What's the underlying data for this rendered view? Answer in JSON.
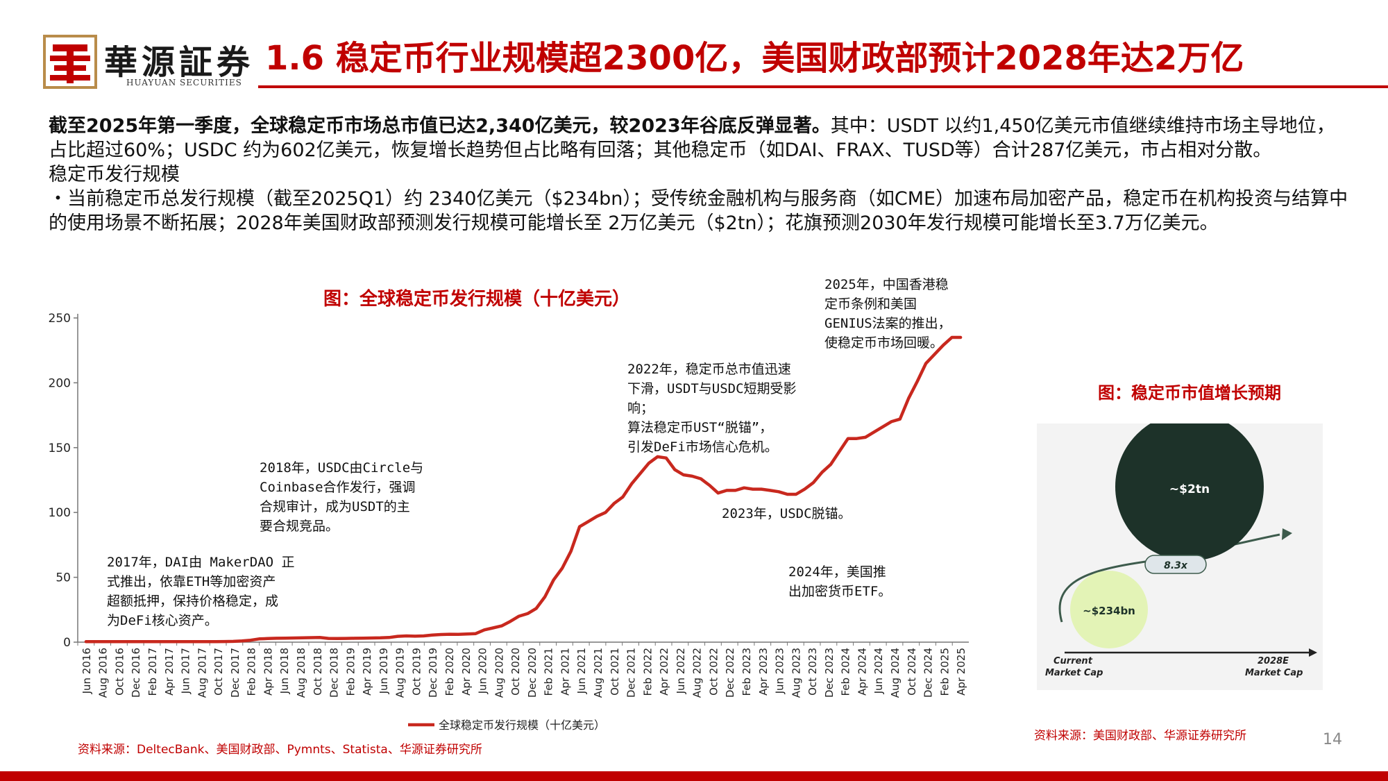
{
  "header": {
    "logo_cn": "華源証券",
    "logo_en": "HUAYUAN SECURITIES",
    "title": "1.6 稳定币行业规模超2300亿，美国财政部预计2028年达2万亿"
  },
  "body": {
    "p1_bold": "截至2025年第一季度，全球稳定币市场总市值已达2,340亿美元，较2023年谷底反弹显著。",
    "p1_rest": "其中：USDT 以约1,450亿美元市值继续维持市场主导地位，占比超过60%；USDC 约为602亿美元，恢复增长趋势但占比略有回落；其他稳定币（如DAI、FRAX、TUSD等）合计287亿美元，市占相对分散。",
    "p2": "稳定币发行规模",
    "p3": "・当前稳定币总发行规模（截至2025Q1）约 2340亿美元（$234bn）；受传统金融机构与服务商（如CME）加速布局加密产品，稳定币在机构投资与结算中的使用场景不断拓展；2028年美国财政部预测发行规模可能增长至 2万亿美元（$2tn）；花旗预测2030年发行规模可能增长至3.7万亿美元。"
  },
  "chart_data": [
    {
      "type": "line",
      "title": "图：全球稳定币发行规模（十亿美元）",
      "legend": "全球稳定币发行规模（十亿美元）",
      "legend_position": "bottom",
      "ylim": [
        0,
        250
      ],
      "yticks": [
        "0",
        "50",
        "100",
        "150",
        "200",
        "250"
      ],
      "xticks": [
        "Jun 2016",
        "Aug 2016",
        "Oct 2016",
        "Dec 2016",
        "Feb 2017",
        "Apr 2017",
        "Jun 2017",
        "Aug 2017",
        "Oct 2017",
        "Dec 2017",
        "Feb 2018",
        "Apr 2018",
        "Jun 2018",
        "Aug 2018",
        "Oct 2018",
        "Dec 2018",
        "Feb 2019",
        "Apr 2019",
        "Jun 2019",
        "Aug 2019",
        "Oct 2019",
        "Dec 2019",
        "Feb 2020",
        "Apr 2020",
        "Jun 2020",
        "Aug 2020",
        "Oct 2020",
        "Dec 2020",
        "Feb 2021",
        "Apr 2021",
        "Jun 2021",
        "Aug 2021",
        "Oct 2021",
        "Dec 2021",
        "Feb 2022",
        "Apr 2022",
        "Jun 2022",
        "Aug 2022",
        "Oct 2022",
        "Dec 2022",
        "Feb 2023",
        "Apr 2023",
        "Jun 2023",
        "Aug 2023",
        "Oct 2023",
        "Dec 2023",
        "Feb 2024",
        "Apr 2024",
        "Jun 2024",
        "Aug 2024",
        "Oct 2024",
        "Dec 2024",
        "Feb 2025",
        "Apr 2025"
      ],
      "series": [
        {
          "name": "全球稳定币发行规模（十亿美元）",
          "color": "#c8281e",
          "values": [
            0.4,
            0.4,
            0.4,
            0.4,
            0.4,
            0.4,
            0.4,
            0.4,
            0.4,
            0.4,
            0.4,
            0.4,
            0.4,
            0.4,
            0.4,
            0.4,
            0.5,
            0.6,
            0.9,
            1.5,
            2.5,
            2.8,
            3.0,
            3.1,
            3.2,
            3.3,
            3.5,
            3.6,
            2.9,
            2.8,
            2.9,
            3.0,
            3.1,
            3.2,
            3.3,
            3.6,
            4.5,
            4.8,
            4.6,
            4.8,
            5.5,
            5.9,
            6.1,
            6.0,
            6.3,
            6.6,
            9.5,
            11.0,
            12.5,
            16.0,
            20.0,
            22.0,
            26.0,
            35.0,
            48.0,
            57.0,
            70.0,
            89.0,
            93.0,
            97.0,
            100.0,
            107.0,
            112.0,
            122.0,
            130.0,
            138.0,
            143.0,
            142.0,
            133.0,
            129.0,
            128.0,
            126.0,
            121.0,
            115.0,
            117.0,
            117.0,
            119.0,
            118.0,
            118.0,
            117.0,
            116.0,
            114.0,
            114.0,
            118.0,
            123.0,
            131.0,
            137.0,
            147.0,
            157.0,
            157.0,
            158.0,
            162.0,
            166.0,
            170.0,
            172.0,
            188.0,
            201.0,
            215.0,
            222.0,
            229.0,
            235.0,
            235.0
          ]
        }
      ],
      "annotations": [
        {
          "id": "a2017",
          "lines": [
            "2017年，DAI由 MakerDAO 正",
            "式推出，依靠ETH等加密资产",
            "超额抵押，保持价格稳定，成",
            "为DeFi核心资产。"
          ]
        },
        {
          "id": "a2018",
          "lines": [
            "2018年，USDC由Circle与",
            "Coinbase合作发行，强调",
            "合规审计，成为USDT的主",
            "要合规竞品。"
          ]
        },
        {
          "id": "a2022",
          "lines": [
            "2022年，稳定币总市值迅速",
            "下滑，USDT与USDC短期受影",
            "响；",
            "算法稳定币UST“脱锚”，",
            "引发DeFi市场信心危机。"
          ]
        },
        {
          "id": "a2023",
          "lines": [
            "2023年，USDC脱锚。"
          ]
        },
        {
          "id": "a2024",
          "lines": [
            "2024年，美国推",
            "出加密货币ETF。"
          ]
        },
        {
          "id": "a2025",
          "lines": [
            "2025年，中国香港稳",
            "定币条例和美国",
            "GENIUS法案的推出，",
            "使稳定币市场回暖。"
          ]
        }
      ]
    },
    {
      "type": "bubble",
      "title": "图：稳定币市值增长预期",
      "categories": [
        "Current Market Cap",
        "2028E Market Cap"
      ],
      "values_labels": [
        "~$234bn",
        "~$2tn"
      ],
      "multiplier": "8.3x",
      "colors": {
        "current": "#e3f3b6",
        "future": "#1d3229"
      }
    }
  ],
  "diagram": {
    "current_label": [
      "Current",
      "Market Cap"
    ],
    "future_label": [
      "2028E",
      "Market Cap"
    ]
  },
  "sources": {
    "left": "资料来源：DeltecBank、美国财政部、Pymnts、Statista、华源证券研究所",
    "right": "资料来源：美国财政部、华源证券研究所"
  },
  "page_number": "14",
  "colors": {
    "brand_red": "#c00000",
    "line": "#c8281e"
  }
}
